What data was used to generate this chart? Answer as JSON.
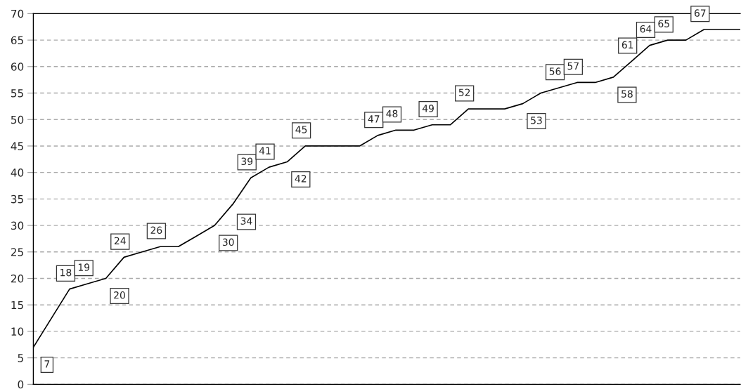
{
  "chart_data": {
    "type": "line",
    "categories": [
      null,
      null,
      null,
      null,
      null,
      null,
      null,
      null,
      null,
      null,
      null,
      null,
      null,
      null,
      null,
      null,
      null,
      null,
      null,
      null,
      null,
      null,
      null,
      null,
      null,
      null,
      null,
      null,
      null,
      null,
      null,
      null,
      null,
      null,
      null,
      null,
      null,
      null,
      null,
      null
    ],
    "series": [
      {
        "color": "#000000",
        "values": [
          7,
          12.5,
          18,
          19,
          20,
          24,
          25,
          26,
          26,
          28,
          30,
          34,
          39,
          41,
          42,
          45,
          45,
          45,
          45,
          47,
          48,
          48,
          49,
          49,
          52,
          52,
          52,
          53,
          55,
          56,
          57,
          57,
          58,
          61,
          64,
          65,
          65,
          67,
          67,
          67
        ],
        "value_labels": [
          "7",
          null,
          "18",
          "19",
          "20",
          "24",
          null,
          "26",
          null,
          null,
          "30",
          "34",
          "39",
          "41",
          "42",
          "45",
          null,
          null,
          null,
          "47",
          "48",
          null,
          "49",
          null,
          "52",
          null,
          null,
          "53",
          null,
          "56",
          "57",
          null,
          "58",
          "61",
          "64",
          "65",
          null,
          "67",
          null,
          null
        ]
      }
    ],
    "ylim": [
      0,
      70
    ],
    "yticks": [
      0,
      5,
      10,
      15,
      20,
      25,
      30,
      35,
      40,
      45,
      50,
      55,
      60,
      65,
      70
    ],
    "grid": "y",
    "tick_labels": "y",
    "marker": "none",
    "line_style": "solid",
    "legend": false
  }
}
